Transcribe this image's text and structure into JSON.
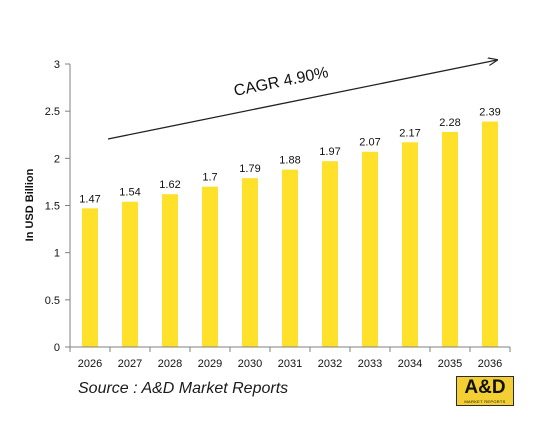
{
  "chart_data": {
    "type": "bar",
    "categories": [
      "2026",
      "2027",
      "2028",
      "2029",
      "2030",
      "2031",
      "2032",
      "2033",
      "2034",
      "2035",
      "2036"
    ],
    "values": [
      1.47,
      1.54,
      1.62,
      1.7,
      1.79,
      1.88,
      1.97,
      2.07,
      2.17,
      2.28,
      2.39
    ],
    "value_labels": [
      "1.47",
      "1.54",
      "1.62",
      "1.7",
      "1.79",
      "1.88",
      "1.97",
      "2.07",
      "2.17",
      "2.28",
      "2.39"
    ],
    "ylabel": "In USD Billion",
    "ylim": [
      0,
      3
    ],
    "yticks": [
      0,
      0.5,
      1,
      1.5,
      2,
      2.5,
      3
    ],
    "ytick_labels": [
      "0",
      "0.5",
      "1",
      "1.5",
      "2",
      "2.5",
      "3"
    ],
    "grid": false,
    "bar_color": "#FFE12B",
    "annotation": "CAGR 4.90%"
  },
  "footer": {
    "source": "Source : A&D Market Reports",
    "logo_text": "A&D",
    "logo_subtext": "MARKET REPORTS"
  },
  "colors": {
    "logo_bg": "#f3cf33",
    "axis": "#808080"
  }
}
